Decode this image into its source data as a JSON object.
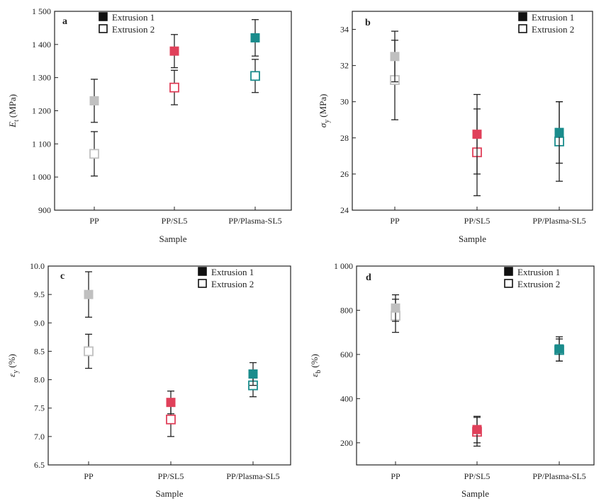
{
  "legend_symbols": {
    "filled": "■",
    "open": "□"
  },
  "chart_data": [
    {
      "panel": "a",
      "type": "scatter",
      "title": "",
      "xlabel": "Sample",
      "ylabel_main": "E",
      "ylabel_sub": "t",
      "ylabel_unit": "(MPa)",
      "categories": [
        "PP",
        "PP/SL5",
        "PP/Plasma-SL5"
      ],
      "ylim": [
        900,
        1500
      ],
      "yticks": [
        900,
        1000,
        1100,
        1200,
        1300,
        1400,
        1500
      ],
      "ytick_labels": [
        "900",
        "1 000",
        "1 100",
        "1 200",
        "1 300",
        "1 400",
        "1 500"
      ],
      "legend_position": "top-left",
      "series": [
        {
          "name": "Extrusion 1",
          "marker": "filled",
          "values": [
            1230,
            1380,
            1420
          ],
          "errors": [
            65,
            50,
            55
          ]
        },
        {
          "name": "Extrusion 2",
          "marker": "open",
          "values": [
            1070,
            1270,
            1305
          ],
          "errors": [
            67,
            52,
            50
          ]
        }
      ],
      "colors": [
        "#c0c0c0",
        "#e0405a",
        "#1a8c8c"
      ]
    },
    {
      "panel": "b",
      "type": "scatter",
      "title": "",
      "xlabel": "Sample",
      "ylabel_main": "σ",
      "ylabel_sub": "y",
      "ylabel_unit": "(MPa)",
      "categories": [
        "PP",
        "PP/SL5",
        "PP/Plasma-SL5"
      ],
      "ylim": [
        24,
        35
      ],
      "yticks": [
        24,
        26,
        28,
        30,
        32,
        34
      ],
      "ytick_labels": [
        "24",
        "26",
        "28",
        "30",
        "32",
        "34"
      ],
      "legend_position": "top-right",
      "series": [
        {
          "name": "Extrusion 1",
          "marker": "filled",
          "values": [
            32.5,
            28.2,
            28.3
          ],
          "errors": [
            1.4,
            2.2,
            1.7
          ]
        },
        {
          "name": "Extrusion 2",
          "marker": "open",
          "values": [
            31.2,
            27.2,
            27.8
          ],
          "errors": [
            2.2,
            2.4,
            2.2
          ]
        }
      ],
      "colors": [
        "#c0c0c0",
        "#e0405a",
        "#1a8c8c"
      ]
    },
    {
      "panel": "c",
      "type": "scatter",
      "title": "",
      "xlabel": "Sample",
      "ylabel_main": "ε",
      "ylabel_sub": "y",
      "ylabel_unit": "(%)",
      "categories": [
        "PP",
        "PP/SL5",
        "PP/Plasma-SL5"
      ],
      "ylim": [
        6.5,
        10.0
      ],
      "yticks": [
        6.5,
        7.0,
        7.5,
        8.0,
        8.5,
        9.0,
        9.5,
        10.0
      ],
      "ytick_labels": [
        "6.5",
        "7.0",
        "7.5",
        "8.0",
        "8.5",
        "9.0",
        "9.5",
        "10.0"
      ],
      "legend_position": "top-right",
      "series": [
        {
          "name": "Extrusion 1",
          "marker": "filled",
          "values": [
            9.5,
            7.6,
            8.1
          ],
          "errors": [
            0.4,
            0.2,
            0.2
          ]
        },
        {
          "name": "Extrusion 2",
          "marker": "open",
          "values": [
            8.5,
            7.3,
            7.9
          ],
          "errors": [
            0.3,
            0.3,
            0.2
          ]
        }
      ],
      "colors": [
        "#c0c0c0",
        "#e0405a",
        "#1a8c8c"
      ]
    },
    {
      "panel": "d",
      "type": "scatter",
      "title": "",
      "xlabel": "Sample",
      "ylabel_main": "ε",
      "ylabel_sub": "b",
      "ylabel_unit": "(%)",
      "categories": [
        "PP",
        "PP/SL5",
        "PP/Plasma-SL5"
      ],
      "ylim": [
        100,
        1000
      ],
      "yticks": [
        200,
        400,
        600,
        800,
        1000
      ],
      "ytick_labels": [
        "200",
        "400",
        "600",
        "800",
        "1 000"
      ],
      "legend_position": "top-right",
      "series": [
        {
          "name": "Extrusion 1",
          "marker": "filled",
          "values": [
            810,
            260,
            625
          ],
          "errors": [
            60,
            60,
            55
          ]
        },
        {
          "name": "Extrusion 2",
          "marker": "open",
          "values": [
            775,
            250,
            620
          ],
          "errors": [
            75,
            65,
            50
          ]
        }
      ],
      "colors": [
        "#c0c0c0",
        "#e0405a",
        "#1a8c8c"
      ]
    }
  ]
}
